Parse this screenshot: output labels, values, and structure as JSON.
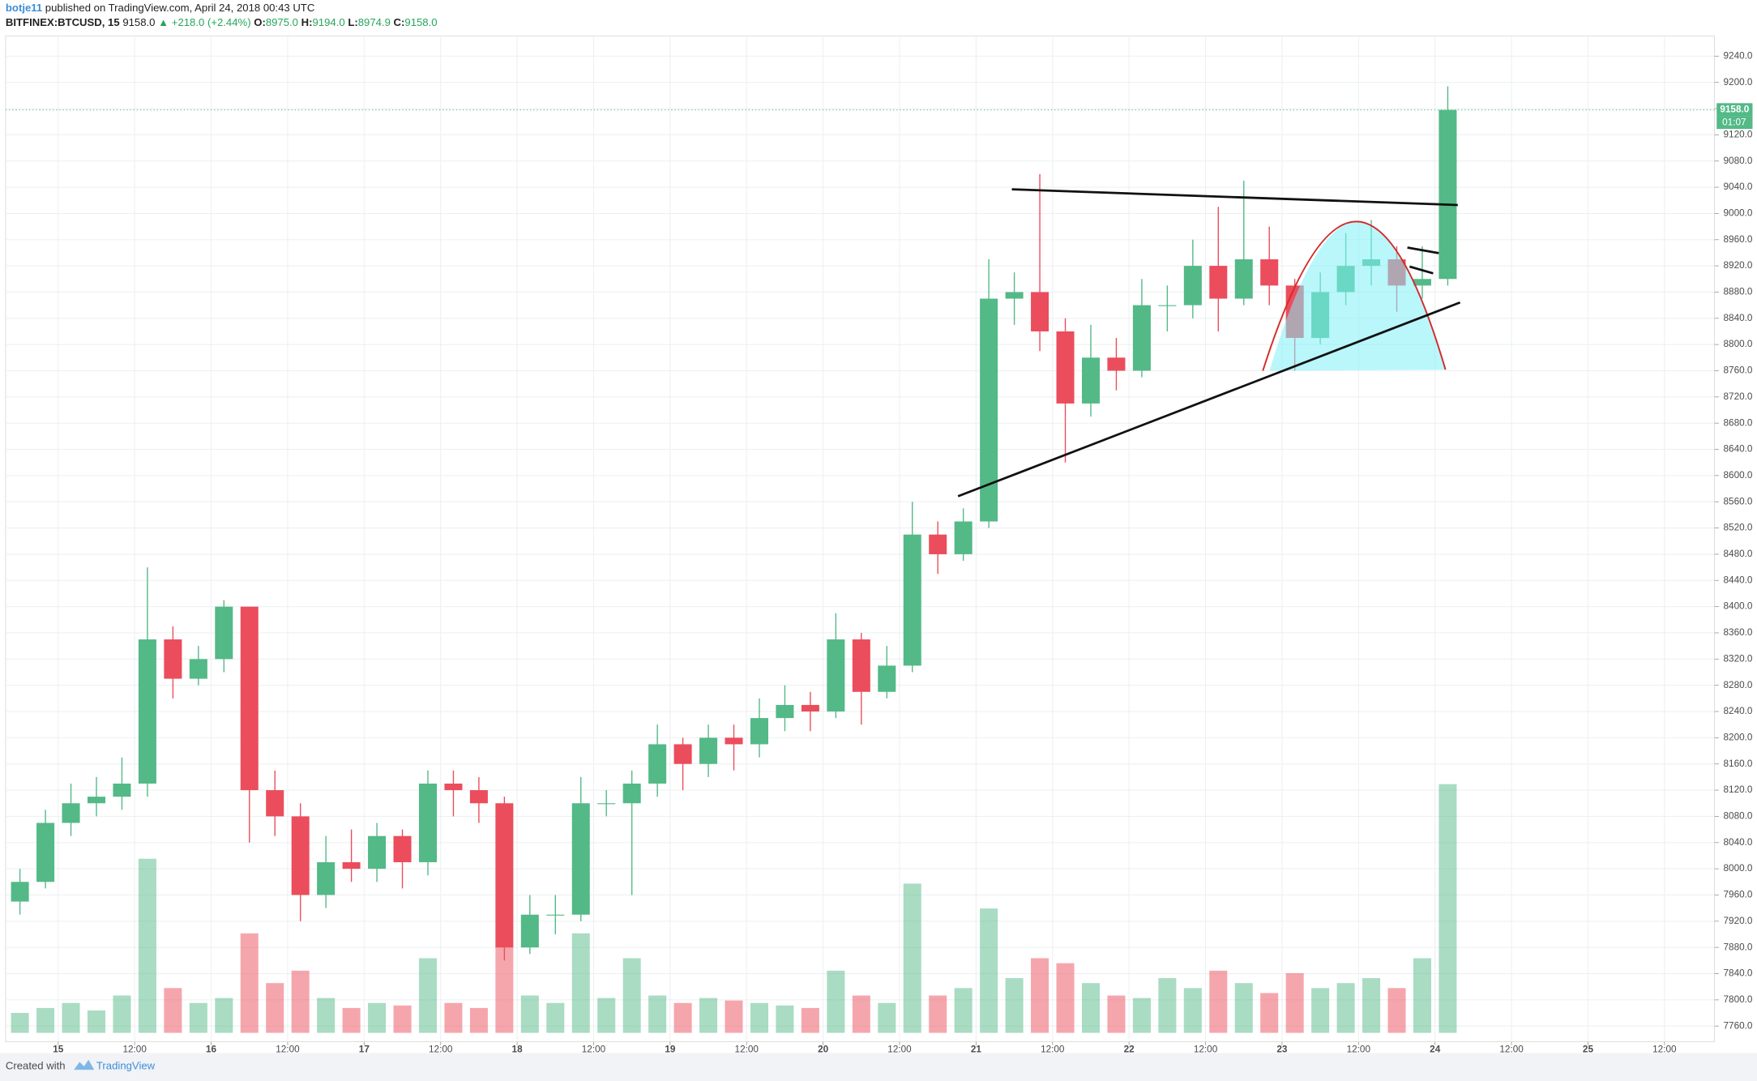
{
  "header": {
    "author": "botje11",
    "published": "published on TradingView.com, April 24, 2018 00:43 UTC",
    "symbol": "BITFINEX:BTCUSD, 15",
    "price": "9158.0",
    "change": "▲ +218.0 (+2.44%)",
    "o_label": "O:",
    "o": "8975.0",
    "h_label": "H:",
    "h": "9194.0",
    "l_label": "L:",
    "l": "8974.9",
    "c_label": "C:",
    "c": "9158.0"
  },
  "footer": {
    "created": "Created with",
    "brand": "TradingView"
  },
  "chart_data": {
    "type": "candlestick",
    "grid": true,
    "up_color": "#53b987",
    "down_color": "#eb4d5c",
    "x": [
      "14 16:00",
      "14 20:00",
      "15 00:00",
      "15 04:00",
      "15 08:00",
      "15 12:00",
      "15 16:00",
      "15 20:00",
      "16 00:00",
      "16 04:00",
      "16 08:00",
      "16 12:00",
      "16 16:00",
      "16 20:00",
      "17 00:00",
      "17 04:00",
      "17 08:00",
      "17 12:00",
      "17 16:00",
      "17 20:00",
      "18 00:00",
      "18 04:00",
      "18 08:00",
      "18 12:00",
      "18 16:00",
      "18 20:00",
      "19 00:00",
      "19 04:00",
      "19 08:00",
      "19 12:00",
      "19 16:00",
      "19 20:00",
      "20 00:00",
      "20 04:00",
      "20 08:00",
      "20 12:00",
      "20 16:00",
      "20 20:00",
      "21 00:00",
      "21 04:00",
      "21 08:00",
      "21 12:00",
      "21 16:00",
      "21 20:00",
      "22 00:00",
      "22 04:00",
      "22 08:00",
      "22 12:00",
      "22 16:00",
      "22 20:00",
      "23 00:00",
      "23 04:00",
      "23 08:00",
      "23 12:00",
      "23 16:00",
      "23 20:00",
      "24 00:00"
    ],
    "open": [
      7950,
      7980,
      8070,
      8100,
      8110,
      8130,
      8350,
      8290,
      8320,
      8400,
      8120,
      8080,
      7960,
      8010,
      8000,
      8050,
      8010,
      8130,
      8120,
      8100,
      7880,
      7930,
      7930,
      8100,
      8100,
      8130,
      8190,
      8160,
      8200,
      8190,
      8230,
      8250,
      8240,
      8350,
      8270,
      8310,
      8510,
      8480,
      8530,
      8870,
      8880,
      8820,
      8710,
      8780,
      8760,
      8860,
      8860,
      8920,
      8870,
      8930,
      8890,
      8810,
      8880,
      8920,
      8930,
      8890,
      8900
    ],
    "high": [
      8000,
      8090,
      8130,
      8140,
      8170,
      8460,
      8370,
      8340,
      8410,
      8400,
      8150,
      8100,
      8050,
      8060,
      8070,
      8060,
      8150,
      8150,
      8140,
      8110,
      7960,
      7960,
      8140,
      8120,
      8150,
      8220,
      8200,
      8220,
      8220,
      8260,
      8280,
      8270,
      8390,
      8360,
      8340,
      8560,
      8530,
      8550,
      8930,
      8910,
      9060,
      8840,
      8830,
      8810,
      8900,
      8890,
      8960,
      9010,
      9050,
      8980,
      8900,
      8910,
      8970,
      8990,
      8950,
      8950,
      9194
    ],
    "low": [
      7930,
      7970,
      8050,
      8080,
      8090,
      8110,
      8260,
      8280,
      8300,
      8040,
      8050,
      7920,
      7940,
      7980,
      7980,
      7970,
      7990,
      8080,
      8070,
      7860,
      7870,
      7900,
      7920,
      8080,
      7960,
      8110,
      8120,
      8140,
      8150,
      8170,
      8210,
      8210,
      8230,
      8220,
      8260,
      8300,
      8450,
      8470,
      8520,
      8830,
      8790,
      8620,
      8690,
      8730,
      8750,
      8820,
      8840,
      8820,
      8860,
      8860,
      8760,
      8800,
      8860,
      8890,
      8850,
      8870,
      8890
    ],
    "close": [
      7980,
      8070,
      8100,
      8110,
      8130,
      8350,
      8290,
      8320,
      8400,
      8120,
      8080,
      7960,
      8010,
      8000,
      8050,
      8010,
      8130,
      8120,
      8100,
      7880,
      7930,
      7930,
      8100,
      8100,
      8130,
      8190,
      8160,
      8200,
      8190,
      8230,
      8250,
      8240,
      8350,
      8270,
      8310,
      8510,
      8480,
      8530,
      8870,
      8880,
      8820,
      8710,
      8780,
      8760,
      8860,
      8860,
      8920,
      8870,
      8930,
      8890,
      8810,
      8880,
      8920,
      8930,
      8890,
      8900,
      9158
    ],
    "volume": [
      8,
      10,
      12,
      9,
      15,
      70,
      18,
      12,
      14,
      40,
      20,
      25,
      14,
      10,
      12,
      11,
      30,
      12,
      10,
      35,
      15,
      12,
      40,
      14,
      30,
      15,
      12,
      14,
      13,
      12,
      11,
      10,
      25,
      15,
      12,
      60,
      15,
      18,
      50,
      22,
      30,
      28,
      20,
      15,
      14,
      22,
      18,
      25,
      20,
      16,
      24,
      18,
      20,
      22,
      18,
      30,
      100
    ],
    "y2lim": [
      0,
      100
    ],
    "last_price": {
      "value": 9158,
      "label": "9158.0"
    },
    "countdown": "01:07",
    "xlim": [
      "14 15:45",
      "25 19:50"
    ],
    "xticks": [
      {
        "value": "15 00:00",
        "label": "15"
      },
      {
        "value": "15 12:00",
        "label": "12:00"
      },
      {
        "value": "16 00:00",
        "label": "16"
      },
      {
        "value": "16 12:00",
        "label": "12:00"
      },
      {
        "value": "17 00:00",
        "label": "17"
      },
      {
        "value": "17 12:00",
        "label": "12:00"
      },
      {
        "value": "18 00:00",
        "label": "18"
      },
      {
        "value": "18 12:00",
        "label": "12:00"
      },
      {
        "value": "19 00:00",
        "label": "19"
      },
      {
        "value": "19 12:00",
        "label": "12:00"
      },
      {
        "value": "20 00:00",
        "label": "20"
      },
      {
        "value": "20 12:00",
        "label": "12:00"
      },
      {
        "value": "21 00:00",
        "label": "21"
      },
      {
        "value": "21 12:00",
        "label": "12:00"
      },
      {
        "value": "22 00:00",
        "label": "22"
      },
      {
        "value": "22 12:00",
        "label": "12:00"
      },
      {
        "value": "23 00:00",
        "label": "23"
      },
      {
        "value": "23 12:00",
        "label": "12:00"
      },
      {
        "value": "24 00:00",
        "label": "24"
      },
      {
        "value": "24 12:00",
        "label": "12:00"
      },
      {
        "value": "25 00:00",
        "label": "25"
      },
      {
        "value": "25 12:00",
        "label": "12:00"
      }
    ],
    "ylim": [
      7736,
      9271
    ],
    "yticks": [
      {
        "value": 7760,
        "label": "7760.0"
      },
      {
        "value": 7800,
        "label": "7800.0"
      },
      {
        "value": 7840,
        "label": "7840.0"
      },
      {
        "value": 7880,
        "label": "7880.0"
      },
      {
        "value": 7920,
        "label": "7920.0"
      },
      {
        "value": 7960,
        "label": "7960.0"
      },
      {
        "value": 8000,
        "label": "8000.0"
      },
      {
        "value": 8040,
        "label": "8040.0"
      },
      {
        "value": 8080,
        "label": "8080.0"
      },
      {
        "value": 8120,
        "label": "8120.0"
      },
      {
        "value": 8160,
        "label": "8160.0"
      },
      {
        "value": 8200,
        "label": "8200.0"
      },
      {
        "value": 8240,
        "label": "8240.0"
      },
      {
        "value": 8280,
        "label": "8280.0"
      },
      {
        "value": 8320,
        "label": "8320.0"
      },
      {
        "value": 8360,
        "label": "8360.0"
      },
      {
        "value": 8400,
        "label": "8400.0"
      },
      {
        "value": 8440,
        "label": "8440.0"
      },
      {
        "value": 8480,
        "label": "8480.0"
      },
      {
        "value": 8520,
        "label": "8520.0"
      },
      {
        "value": 8560,
        "label": "8560.0"
      },
      {
        "value": 8600,
        "label": "8600.0"
      },
      {
        "value": 8640,
        "label": "8640.0"
      },
      {
        "value": 8680,
        "label": "8680.0"
      },
      {
        "value": 8720,
        "label": "8720.0"
      },
      {
        "value": 8760,
        "label": "8760.0"
      },
      {
        "value": 8800,
        "label": "8800.0"
      },
      {
        "value": 8840,
        "label": "8840.0"
      },
      {
        "value": 8880,
        "label": "8880.0"
      },
      {
        "value": 8920,
        "label": "8920.0"
      },
      {
        "value": 8960,
        "label": "8960.0"
      },
      {
        "value": 9000,
        "label": "9000.0"
      },
      {
        "value": 9040,
        "label": "9040.0"
      },
      {
        "value": 9080,
        "label": "9080.0"
      },
      {
        "value": 9120,
        "label": "9120.0"
      },
      {
        "value": 9160,
        "label": "9160.0"
      },
      {
        "value": 9200,
        "label": "9200.0"
      },
      {
        "value": 9240,
        "label": "9240.0"
      }
    ]
  }
}
